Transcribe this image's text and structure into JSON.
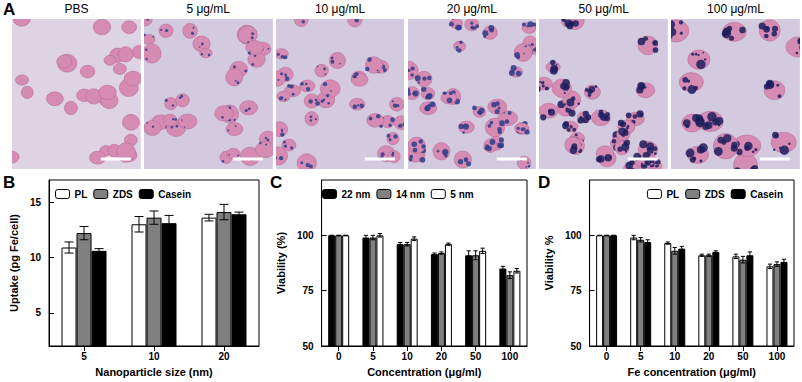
{
  "image_panel": {
    "label": "A",
    "captions": [
      "PBS",
      "5 μg/mL",
      "10 μg/mL",
      "20 μg/mL",
      "50 μg/mL",
      "100 μg/mL"
    ]
  },
  "chart_data": [
    {
      "panel": "B",
      "type": "bar",
      "x_label": "Nanoparticle size (nm)",
      "y_label": "Uptake (pg Fe/cell)",
      "categories": [
        "5",
        "10",
        "20"
      ],
      "series": [
        {
          "name": "PL",
          "color": "#ffffff",
          "values": [
            10.9,
            13.0,
            13.6
          ],
          "errors": [
            0.5,
            0.7,
            0.3
          ]
        },
        {
          "name": "ZDS",
          "color": "#808080",
          "values": [
            12.2,
            13.6,
            14.1
          ],
          "errors": [
            0.6,
            0.6,
            0.7
          ]
        },
        {
          "name": "Casein",
          "color": "#000000",
          "values": [
            10.6,
            13.1,
            13.9
          ],
          "errors": [
            0.2,
            0.7,
            0.2
          ]
        }
      ],
      "ylim": [
        2,
        17
      ],
      "yticks": [
        5,
        10,
        15
      ],
      "grid": false,
      "legend": "upper left"
    },
    {
      "panel": "C",
      "type": "bar",
      "x_label": "Concentration (μg/ml)",
      "y_label": "Viability (%)",
      "categories": [
        "0",
        "5",
        "10",
        "20",
        "50",
        "100"
      ],
      "series": [
        {
          "name": "22 nm",
          "color": "#000000",
          "values": [
            100,
            99,
            96,
            91.5,
            91,
            85
          ],
          "errors": [
            0,
            1,
            0.8,
            0.5,
            2,
            1
          ]
        },
        {
          "name": "14 nm",
          "color": "#808080",
          "values": [
            100,
            99,
            96,
            92,
            91,
            82
          ],
          "errors": [
            0,
            1,
            0.8,
            0.5,
            2,
            1.5
          ]
        },
        {
          "name": "5 nm",
          "color": "#ffffff",
          "values": [
            100,
            100,
            98.5,
            96,
            93,
            84
          ],
          "errors": [
            0,
            0.8,
            0.8,
            0.5,
            1.2,
            1
          ]
        }
      ],
      "ylim": [
        50,
        125
      ],
      "yticks": [
        50,
        75,
        100
      ],
      "grid": false,
      "legend": "upper left"
    },
    {
      "panel": "D",
      "type": "bar",
      "x_label": "Fe concentration (μg/ml)",
      "y_label": "Viability %",
      "categories": [
        "0",
        "5",
        "10",
        "20",
        "50",
        "100"
      ],
      "series": [
        {
          "name": "PL",
          "color": "#ffffff",
          "values": [
            100,
            99,
            96.5,
            91,
            90.5,
            86
          ],
          "errors": [
            0,
            1,
            0.5,
            0.5,
            1,
            1
          ]
        },
        {
          "name": "ZDS",
          "color": "#808080",
          "values": [
            100,
            98,
            93,
            91,
            89,
            87
          ],
          "errors": [
            0,
            1,
            1.5,
            0.5,
            1.5,
            1
          ]
        },
        {
          "name": "Casein",
          "color": "#000000",
          "values": [
            100,
            97,
            94,
            92.5,
            91,
            88
          ],
          "errors": [
            0,
            1,
            1,
            0.5,
            1.5,
            1.2
          ]
        }
      ],
      "ylim": [
        50,
        125
      ],
      "yticks": [
        50,
        75,
        100
      ],
      "grid": false,
      "legend": "upper right"
    }
  ]
}
